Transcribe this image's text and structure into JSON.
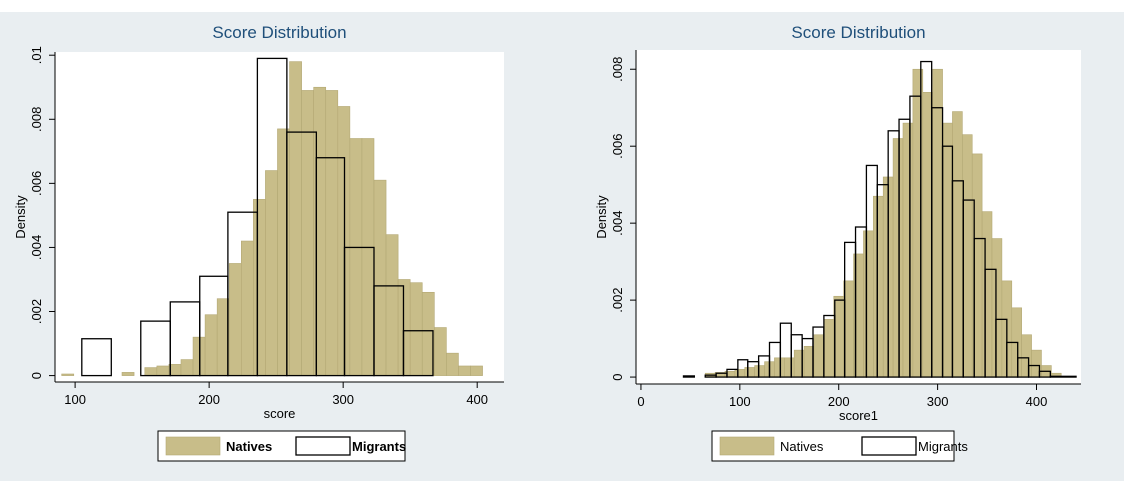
{
  "chart_data": [
    {
      "type": "bar",
      "title": "Score Distribution",
      "xlabel": "score",
      "ylabel": "Density",
      "xlim": [
        85,
        420
      ],
      "ylim": [
        -0.0002,
        0.0101
      ],
      "xticks": [
        100,
        200,
        300,
        400
      ],
      "yticks": [
        0,
        0.002,
        0.004,
        0.006,
        0.008,
        0.01
      ],
      "ytick_labels": [
        "0",
        ".002",
        ".004",
        ".006",
        ".008",
        ".01"
      ],
      "grid": false,
      "legend_placement": "bottom",
      "series": [
        {
          "name": "Natives",
          "style": "filled",
          "bins": [
            {
              "x0": 90,
              "x1": 99,
              "y": 5e-05
            },
            {
              "x0": 135,
              "x1": 144,
              "y": 0.0001
            },
            {
              "x0": 152,
              "x1": 161,
              "y": 0.00025
            },
            {
              "x0": 161,
              "x1": 170,
              "y": 0.0003
            },
            {
              "x0": 170,
              "x1": 179,
              "y": 0.00035
            },
            {
              "x0": 179,
              "x1": 188,
              "y": 0.0005
            },
            {
              "x0": 188,
              "x1": 197,
              "y": 0.0012
            },
            {
              "x0": 197,
              "x1": 206,
              "y": 0.0019
            },
            {
              "x0": 206,
              "x1": 215,
              "y": 0.0024
            },
            {
              "x0": 215,
              "x1": 224,
              "y": 0.0035
            },
            {
              "x0": 224,
              "x1": 233,
              "y": 0.0042
            },
            {
              "x0": 233,
              "x1": 242,
              "y": 0.0055
            },
            {
              "x0": 242,
              "x1": 251,
              "y": 0.0064
            },
            {
              "x0": 251,
              "x1": 260,
              "y": 0.0077
            },
            {
              "x0": 260,
              "x1": 269,
              "y": 0.0098
            },
            {
              "x0": 269,
              "x1": 278,
              "y": 0.0089
            },
            {
              "x0": 278,
              "x1": 287,
              "y": 0.009
            },
            {
              "x0": 287,
              "x1": 296,
              "y": 0.0089
            },
            {
              "x0": 296,
              "x1": 305,
              "y": 0.0084
            },
            {
              "x0": 305,
              "x1": 314,
              "y": 0.0074
            },
            {
              "x0": 314,
              "x1": 323,
              "y": 0.0074
            },
            {
              "x0": 323,
              "x1": 332,
              "y": 0.0061
            },
            {
              "x0": 332,
              "x1": 341,
              "y": 0.0044
            },
            {
              "x0": 341,
              "x1": 350,
              "y": 0.003
            },
            {
              "x0": 350,
              "x1": 359,
              "y": 0.0029
            },
            {
              "x0": 359,
              "x1": 368,
              "y": 0.0026
            },
            {
              "x0": 368,
              "x1": 377,
              "y": 0.0015
            },
            {
              "x0": 377,
              "x1": 386,
              "y": 0.0007
            },
            {
              "x0": 386,
              "x1": 395,
              "y": 0.0003
            },
            {
              "x0": 395,
              "x1": 404,
              "y": 0.0003
            }
          ]
        },
        {
          "name": "Migrants",
          "style": "outline",
          "bins": [
            {
              "x0": 105,
              "x1": 127,
              "y": 0.00115
            },
            {
              "x0": 149,
              "x1": 171,
              "y": 0.0017
            },
            {
              "x0": 171,
              "x1": 193,
              "y": 0.0023
            },
            {
              "x0": 193,
              "x1": 214,
              "y": 0.0031
            },
            {
              "x0": 214,
              "x1": 236,
              "y": 0.0051
            },
            {
              "x0": 236,
              "x1": 258,
              "y": 0.0099
            },
            {
              "x0": 258,
              "x1": 280,
              "y": 0.0076
            },
            {
              "x0": 280,
              "x1": 301,
              "y": 0.0068
            },
            {
              "x0": 301,
              "x1": 323,
              "y": 0.004
            },
            {
              "x0": 323,
              "x1": 345,
              "y": 0.0028
            },
            {
              "x0": 345,
              "x1": 367,
              "y": 0.0014
            }
          ]
        }
      ]
    },
    {
      "type": "bar",
      "title": "Score Distribution",
      "xlabel": "score1",
      "ylabel": "Density",
      "xlim": [
        -5,
        445
      ],
      "ylim": [
        -0.00018,
        0.0085
      ],
      "xticks": [
        0,
        100,
        200,
        300,
        400
      ],
      "yticks": [
        0,
        0.002,
        0.004,
        0.006,
        0.008
      ],
      "ytick_labels": [
        "0",
        ".002",
        ".004",
        ".006",
        ".008"
      ],
      "grid": false,
      "legend_placement": "bottom",
      "series": [
        {
          "name": "Natives",
          "style": "filled",
          "bins": [
            {
              "x0": 65,
              "x1": 75,
              "y": 0.0001
            },
            {
              "x0": 75,
              "x1": 85,
              "y": 0.00012
            },
            {
              "x0": 85,
              "x1": 95,
              "y": 0.00015
            },
            {
              "x0": 95,
              "x1": 105,
              "y": 0.0002
            },
            {
              "x0": 105,
              "x1": 115,
              "y": 0.00025
            },
            {
              "x0": 115,
              "x1": 125,
              "y": 0.0003
            },
            {
              "x0": 125,
              "x1": 135,
              "y": 0.0004
            },
            {
              "x0": 135,
              "x1": 145,
              "y": 0.0005
            },
            {
              "x0": 145,
              "x1": 155,
              "y": 0.0005
            },
            {
              "x0": 155,
              "x1": 165,
              "y": 0.0007
            },
            {
              "x0": 165,
              "x1": 175,
              "y": 0.0008
            },
            {
              "x0": 175,
              "x1": 185,
              "y": 0.0011
            },
            {
              "x0": 185,
              "x1": 195,
              "y": 0.0015
            },
            {
              "x0": 195,
              "x1": 205,
              "y": 0.0021
            },
            {
              "x0": 205,
              "x1": 215,
              "y": 0.0025
            },
            {
              "x0": 215,
              "x1": 225,
              "y": 0.0032
            },
            {
              "x0": 225,
              "x1": 235,
              "y": 0.0038
            },
            {
              "x0": 235,
              "x1": 245,
              "y": 0.0047
            },
            {
              "x0": 245,
              "x1": 255,
              "y": 0.0052
            },
            {
              "x0": 255,
              "x1": 265,
              "y": 0.0062
            },
            {
              "x0": 265,
              "x1": 275,
              "y": 0.0066
            },
            {
              "x0": 275,
              "x1": 285,
              "y": 0.008
            },
            {
              "x0": 285,
              "x1": 295,
              "y": 0.0074
            },
            {
              "x0": 295,
              "x1": 305,
              "y": 0.008
            },
            {
              "x0": 305,
              "x1": 315,
              "y": 0.0066
            },
            {
              "x0": 315,
              "x1": 325,
              "y": 0.0069
            },
            {
              "x0": 325,
              "x1": 335,
              "y": 0.0063
            },
            {
              "x0": 335,
              "x1": 345,
              "y": 0.0058
            },
            {
              "x0": 345,
              "x1": 355,
              "y": 0.0043
            },
            {
              "x0": 355,
              "x1": 365,
              "y": 0.0036
            },
            {
              "x0": 365,
              "x1": 375,
              "y": 0.0025
            },
            {
              "x0": 375,
              "x1": 385,
              "y": 0.0018
            },
            {
              "x0": 385,
              "x1": 395,
              "y": 0.0011
            },
            {
              "x0": 395,
              "x1": 405,
              "y": 0.0007
            },
            {
              "x0": 405,
              "x1": 415,
              "y": 0.0003
            },
            {
              "x0": 415,
              "x1": 425,
              "y": 0.0001
            }
          ]
        },
        {
          "name": "Migrants",
          "style": "outline",
          "bins": [
            {
              "x0": 43,
              "x1": 54,
              "y": 3e-05
            },
            {
              "x0": 65,
              "x1": 76,
              "y": 5e-05
            },
            {
              "x0": 76,
              "x1": 87,
              "y": 0.0001
            },
            {
              "x0": 87,
              "x1": 98,
              "y": 0.0002
            },
            {
              "x0": 98,
              "x1": 108,
              "y": 0.00045
            },
            {
              "x0": 108,
              "x1": 119,
              "y": 0.0004
            },
            {
              "x0": 119,
              "x1": 130,
              "y": 0.00055
            },
            {
              "x0": 130,
              "x1": 141,
              "y": 0.0009
            },
            {
              "x0": 141,
              "x1": 152,
              "y": 0.0014
            },
            {
              "x0": 152,
              "x1": 163,
              "y": 0.0011
            },
            {
              "x0": 163,
              "x1": 174,
              "y": 0.001
            },
            {
              "x0": 174,
              "x1": 185,
              "y": 0.0013
            },
            {
              "x0": 185,
              "x1": 196,
              "y": 0.0016
            },
            {
              "x0": 196,
              "x1": 206,
              "y": 0.002
            },
            {
              "x0": 206,
              "x1": 217,
              "y": 0.0035
            },
            {
              "x0": 217,
              "x1": 228,
              "y": 0.0039
            },
            {
              "x0": 228,
              "x1": 239,
              "y": 0.0055
            },
            {
              "x0": 239,
              "x1": 250,
              "y": 0.005
            },
            {
              "x0": 250,
              "x1": 261,
              "y": 0.0064
            },
            {
              "x0": 261,
              "x1": 272,
              "y": 0.0067
            },
            {
              "x0": 272,
              "x1": 283,
              "y": 0.0073
            },
            {
              "x0": 283,
              "x1": 294,
              "y": 0.0082
            },
            {
              "x0": 294,
              "x1": 305,
              "y": 0.007
            },
            {
              "x0": 305,
              "x1": 315,
              "y": 0.006
            },
            {
              "x0": 315,
              "x1": 326,
              "y": 0.0051
            },
            {
              "x0": 326,
              "x1": 337,
              "y": 0.0046
            },
            {
              "x0": 337,
              "x1": 348,
              "y": 0.0036
            },
            {
              "x0": 348,
              "x1": 359,
              "y": 0.0028
            },
            {
              "x0": 359,
              "x1": 370,
              "y": 0.0015
            },
            {
              "x0": 370,
              "x1": 381,
              "y": 0.0009
            },
            {
              "x0": 381,
              "x1": 392,
              "y": 0.0005
            },
            {
              "x0": 392,
              "x1": 403,
              "y": 0.0003
            },
            {
              "x0": 403,
              "x1": 414,
              "y": 0.00015
            },
            {
              "x0": 414,
              "x1": 440,
              "y": 2e-05
            }
          ]
        }
      ]
    }
  ],
  "colors": {
    "panel_bg": "#e9eef1",
    "plot_bg": "#ffffff",
    "natives_fill": "#c8bd89",
    "natives_stroke": "#b3a874",
    "migrants_stroke": "#000000",
    "title": "#1f4f7a"
  }
}
